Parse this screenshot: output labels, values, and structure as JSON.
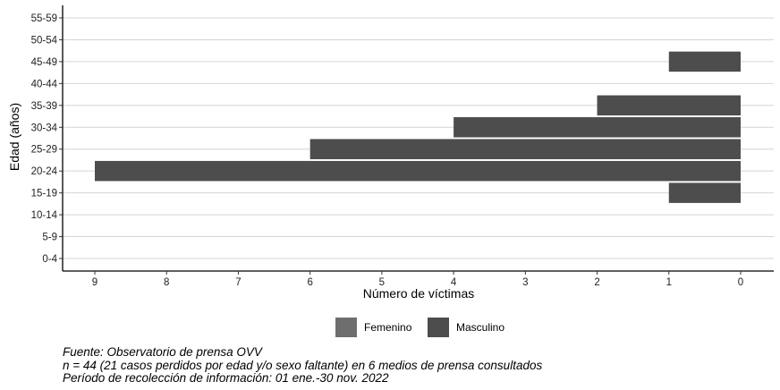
{
  "chart_data": {
    "type": "bar",
    "orientation": "horizontal",
    "categories": [
      "0-4",
      "5-9",
      "10-14",
      "15-19",
      "20-24",
      "25-29",
      "30-34",
      "35-39",
      "40-44",
      "45-49",
      "50-54",
      "55-59"
    ],
    "series": [
      {
        "name": "Femenino",
        "color": "#6e6e6e",
        "values": [
          0,
          0,
          0,
          0,
          0,
          0,
          0,
          0,
          0,
          0,
          0,
          0
        ]
      },
      {
        "name": "Masculino",
        "color": "#4d4d4d",
        "values": [
          0,
          0,
          0,
          1,
          9,
          6,
          4,
          2,
          0,
          1,
          0,
          0
        ]
      }
    ],
    "xlabel": "Número de víctimas",
    "ylabel": "Edad (años)",
    "xlim": [
      9,
      0
    ],
    "x_reversed": true,
    "xticks": [
      "9",
      "8",
      "7",
      "6",
      "5",
      "4",
      "3",
      "2",
      "1",
      "0"
    ],
    "grid": true,
    "legend": {
      "placement": "bottom",
      "items": [
        "Femenino",
        "Masculino"
      ]
    }
  },
  "caption": {
    "line1": "Fuente: Observatorio de prensa OVV",
    "line2": "n = 44 (21 casos perdidos por edad y/o sexo faltante) en 6 medios de prensa consultados",
    "line3": "Período de recolección de información: 01 ene.-30 nov. 2022"
  }
}
